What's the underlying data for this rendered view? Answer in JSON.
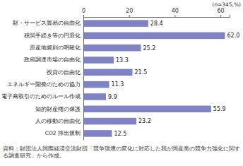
{
  "chart_data": {
    "type": "bar",
    "orientation": "horizontal",
    "categories": [
      "財・サービス貿易の自由化",
      "税関手続き等の円滑化",
      "原産地規則の明確化",
      "政府調達市場の自由化",
      "投資の自由化",
      "エネルギー開発のための協力",
      "電子商取引のためのルール作成",
      "知的財産権の保護",
      "人の移動の自由化",
      "CO2 排出規制"
    ],
    "values": [
      28.4,
      62.0,
      25.2,
      13.3,
      21.5,
      11.3,
      9.9,
      55.9,
      23.2,
      12.5
    ],
    "value_labels": [
      "28.4",
      "62.0",
      "25.2",
      "13.3",
      "21.5",
      "11.3",
      "9.9",
      "55.9",
      "23.2",
      "12.5"
    ],
    "data_labels": true,
    "color": "#7f83c6",
    "xlim": [
      0,
      64
    ],
    "xticks": [
      0,
      20,
      40,
      60
    ],
    "grid": false,
    "annotations": [
      "(n=345,%)",
      "資料：財団法人国際経済交流財団「競争環境の変化に対応した我が国産業の競争力強化に関する調査研究」から作成。"
    ]
  }
}
